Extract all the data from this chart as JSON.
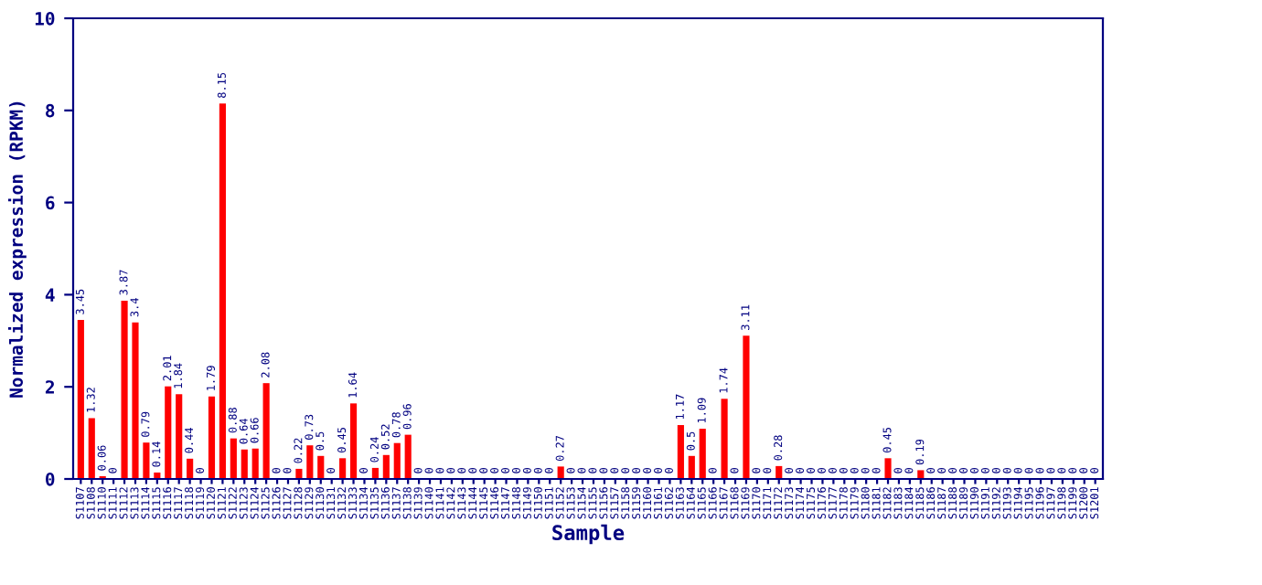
{
  "chart_data": {
    "type": "bar",
    "xlabel": "Sample",
    "ylabel": "Normalized expression (RPKM)",
    "categories": [
      "S1107",
      "S1108",
      "S1110",
      "S1111",
      "S1112",
      "S1113",
      "S1114",
      "S1115",
      "S1116",
      "S1117",
      "S1118",
      "S1119",
      "S1120",
      "S1121",
      "S1122",
      "S1123",
      "S1124",
      "S1125",
      "S1126",
      "S1127",
      "S1128",
      "S1129",
      "S1130",
      "S1131",
      "S1132",
      "S1133",
      "S1134",
      "S1135",
      "S1136",
      "S1137",
      "S1138",
      "S1139",
      "S1140",
      "S1141",
      "S1142",
      "S1143",
      "S1144",
      "S1145",
      "S1146",
      "S1147",
      "S1148",
      "S1149",
      "S1150",
      "S1151",
      "S1152",
      "S1153",
      "S1154",
      "S1155",
      "S1156",
      "S1157",
      "S1158",
      "S1159",
      "S1160",
      "S1161",
      "S1162",
      "S1163",
      "S1164",
      "S1165",
      "S1166",
      "S1167",
      "S1168",
      "S1169",
      "S1170",
      "S1171",
      "S1172",
      "S1173",
      "S1174",
      "S1175",
      "S1176",
      "S1177",
      "S1178",
      "S1179",
      "S1180",
      "S1181",
      "S1182",
      "S1183",
      "S1184",
      "S1185",
      "S1186",
      "S1187",
      "S1188",
      "S1189",
      "S1190",
      "S1191",
      "S1192",
      "S1193",
      "S1194",
      "S1195",
      "S1196",
      "S1197",
      "S1198",
      "S1199",
      "S1200",
      "S1201"
    ],
    "values": [
      3.45,
      1.32,
      0.06,
      0,
      3.87,
      3.4,
      0.79,
      0.14,
      2.01,
      1.84,
      0.44,
      0,
      1.79,
      8.15,
      0.88,
      0.64,
      0.66,
      2.08,
      0,
      0,
      0.22,
      0.73,
      0.5,
      0,
      0.45,
      1.64,
      0,
      0.24,
      0.52,
      0.78,
      0.96,
      0,
      0,
      0,
      0,
      0,
      0,
      0,
      0,
      0,
      0,
      0,
      0,
      0,
      0.27,
      0,
      0,
      0,
      0,
      0,
      0,
      0,
      0,
      0,
      0,
      1.17,
      0.5,
      1.09,
      0,
      1.74,
      0,
      3.11,
      0,
      0,
      0.28,
      0,
      0,
      0,
      0,
      0,
      0,
      0,
      0,
      0,
      0.45,
      0,
      0,
      0.19,
      0,
      0,
      0,
      0,
      0,
      0,
      0,
      0,
      0,
      0,
      0,
      0,
      0,
      0,
      0,
      0
    ],
    "color": "#ff0000",
    "ylim": [
      0,
      10
    ],
    "yticks": [
      0,
      2,
      4,
      6,
      8,
      10
    ],
    "grid": false,
    "data_labels": true
  }
}
